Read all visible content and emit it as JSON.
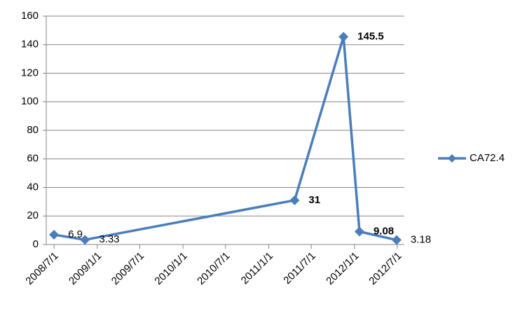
{
  "chart_data": {
    "type": "line",
    "x": [
      "2008/7/1",
      "2008/11/10",
      "2011/4/21",
      "2011/11/15",
      "2012/1/22",
      "2012/6/28"
    ],
    "series": [
      {
        "name": "CA72.4",
        "color": "#4a7ebb",
        "values": [
          6.9,
          3.33,
          31,
          145.5,
          9.08,
          3.18
        ]
      }
    ],
    "value_label_colors": [
      "#000000",
      "#000000",
      "#ff0000",
      "#ff0000",
      "#ff0000",
      "#000000"
    ],
    "xlim": [
      "2008/5/29",
      "2012/7/31"
    ],
    "xticks": [
      "2008/7/1",
      "2009/1/1",
      "2009/7/1",
      "2010/1/1",
      "2010/7/1",
      "2011/1/1",
      "2011/7/1",
      "2012/1/1",
      "2012/7/1"
    ],
    "ylim": [
      0,
      160
    ],
    "yticks": [
      0,
      20,
      40,
      60,
      80,
      100,
      120,
      140,
      160
    ],
    "grid": true,
    "legend": "right"
  }
}
